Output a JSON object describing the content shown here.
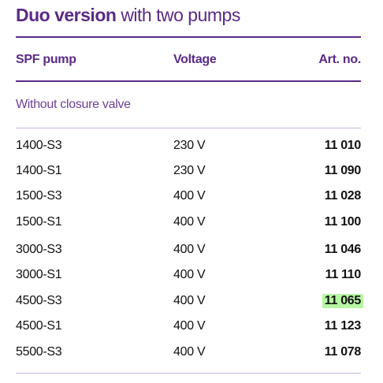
{
  "title": {
    "bold": "Duo version",
    "rest": "with two pumps"
  },
  "table": {
    "header": [
      "SPF pump",
      "Voltage",
      "Art. no."
    ],
    "section": "Without closure valve",
    "rows": [
      [
        "1400-S3",
        "230 V",
        "11 010"
      ],
      [
        "1400-S1",
        "230 V",
        "11 090"
      ],
      [
        "1500-S3",
        "400 V",
        "11 028"
      ],
      [
        "1500-S1",
        "400 V",
        "11 100"
      ],
      [
        "3000-S3",
        "400 V",
        "11 046"
      ],
      [
        "3000-S1",
        "400 V",
        "11 110"
      ],
      [
        "4500-S3",
        "400 V",
        "11 065"
      ],
      [
        "4500-S1",
        "400 V",
        "11 123"
      ],
      [
        "5500-S3",
        "400 V",
        "11 078"
      ]
    ]
  }
}
